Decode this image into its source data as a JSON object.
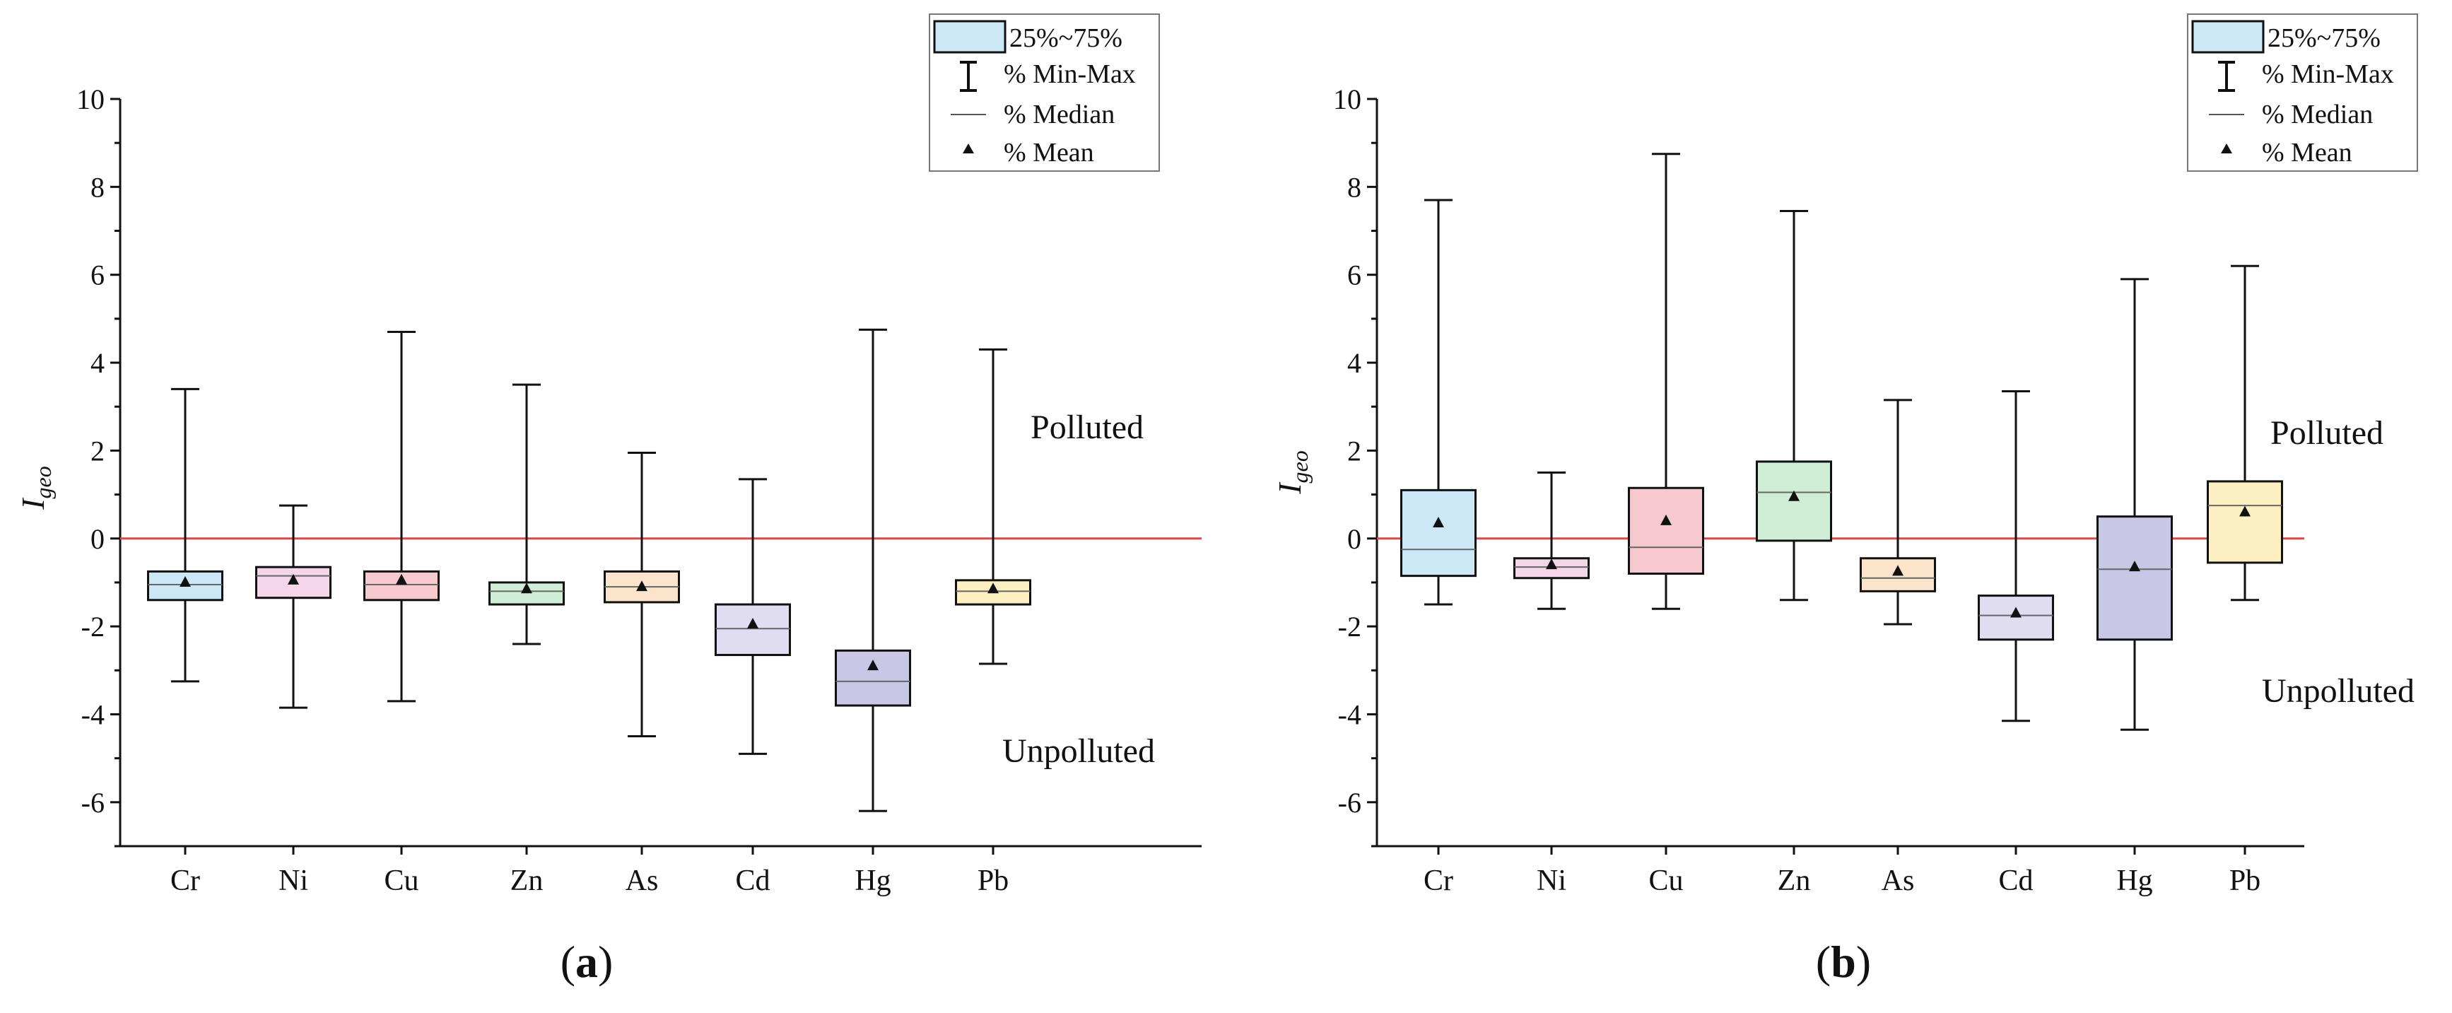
{
  "chart_data": [
    {
      "type": "box",
      "panel_label": "a",
      "ylabel_main": "I",
      "ylabel_sub": "geo",
      "ylim": [
        -7,
        10
      ],
      "yticks": [
        "10",
        "8",
        "6",
        "4",
        "2",
        "0",
        "-2",
        "-4",
        "-6"
      ],
      "reference_line_y": 0,
      "zone_labels": {
        "upper": "Polluted",
        "lower": "Unpolluted"
      },
      "categories": [
        "Cr",
        "Ni",
        "Cu",
        "Zn",
        "As",
        "Cd",
        "Hg",
        "Pb"
      ],
      "colors": [
        "#cce8f7",
        "#f3d6e8",
        "#f6c9cf",
        "#cfeed5",
        "#fbe3cc",
        "#e0dcf1",
        "#c8c8e6",
        "#fcf0c2"
      ],
      "boxes": [
        {
          "min": -3.25,
          "q1": -1.4,
          "median": -1.05,
          "q3": -0.75,
          "max": 3.4,
          "mean": -1.0
        },
        {
          "min": -3.85,
          "q1": -1.35,
          "median": -0.85,
          "q3": -0.65,
          "max": 0.75,
          "mean": -0.95
        },
        {
          "min": -3.7,
          "q1": -1.4,
          "median": -1.05,
          "q3": -0.75,
          "max": 4.7,
          "mean": -0.95
        },
        {
          "min": -2.4,
          "q1": -1.5,
          "median": -1.2,
          "q3": -1.0,
          "max": 3.5,
          "mean": -1.15
        },
        {
          "min": -4.5,
          "q1": -1.45,
          "median": -1.1,
          "q3": -0.75,
          "max": 1.95,
          "mean": -1.1
        },
        {
          "min": -4.9,
          "q1": -2.65,
          "median": -2.05,
          "q3": -1.5,
          "max": 1.35,
          "mean": -1.95
        },
        {
          "min": -6.2,
          "q1": -3.8,
          "median": -3.25,
          "q3": -2.55,
          "max": 4.75,
          "mean": -2.9
        },
        {
          "min": -2.85,
          "q1": -1.5,
          "median": -1.2,
          "q3": -0.95,
          "max": 4.3,
          "mean": -1.15
        }
      ]
    },
    {
      "type": "box",
      "panel_label": "b",
      "ylabel_main": "I",
      "ylabel_sub": "geo",
      "ylim": [
        -7,
        10
      ],
      "yticks": [
        "10",
        "8",
        "6",
        "4",
        "2",
        "0",
        "-2",
        "-4",
        "-6"
      ],
      "reference_line_y": 0,
      "zone_labels": {
        "upper": "Polluted",
        "lower": "Unpolluted"
      },
      "categories": [
        "Cr",
        "Ni",
        "Cu",
        "Zn",
        "As",
        "Cd",
        "Hg",
        "Pb"
      ],
      "colors": [
        "#cce8f7",
        "#f3d6e8",
        "#f6c9cf",
        "#cfeed5",
        "#fbe3cc",
        "#e0dcf1",
        "#c8c8e6",
        "#fcf0c2"
      ],
      "boxes": [
        {
          "min": -1.5,
          "q1": -0.85,
          "median": -0.25,
          "q3": 1.1,
          "max": 7.7,
          "mean": 0.35
        },
        {
          "min": -1.6,
          "q1": -0.9,
          "median": -0.65,
          "q3": -0.45,
          "max": 1.5,
          "mean": -0.6
        },
        {
          "min": -1.6,
          "q1": -0.8,
          "median": -0.2,
          "q3": 1.15,
          "max": 8.75,
          "mean": 0.4
        },
        {
          "min": -1.4,
          "q1": -0.05,
          "median": 1.05,
          "q3": 1.75,
          "max": 7.45,
          "mean": 0.95
        },
        {
          "min": -1.95,
          "q1": -1.2,
          "median": -0.9,
          "q3": -0.45,
          "max": 3.15,
          "mean": -0.75
        },
        {
          "min": -4.15,
          "q1": -2.3,
          "median": -1.75,
          "q3": -1.3,
          "max": 3.35,
          "mean": -1.7
        },
        {
          "min": -4.35,
          "q1": -2.3,
          "median": -0.7,
          "q3": 0.5,
          "max": 5.9,
          "mean": -0.65
        },
        {
          "min": -1.4,
          "q1": -0.55,
          "median": 0.75,
          "q3": 1.3,
          "max": 6.2,
          "mean": 0.6
        }
      ]
    }
  ],
  "legend": {
    "items": [
      "25%~75%",
      "% Min-Max",
      "% Median",
      "% Mean"
    ]
  }
}
